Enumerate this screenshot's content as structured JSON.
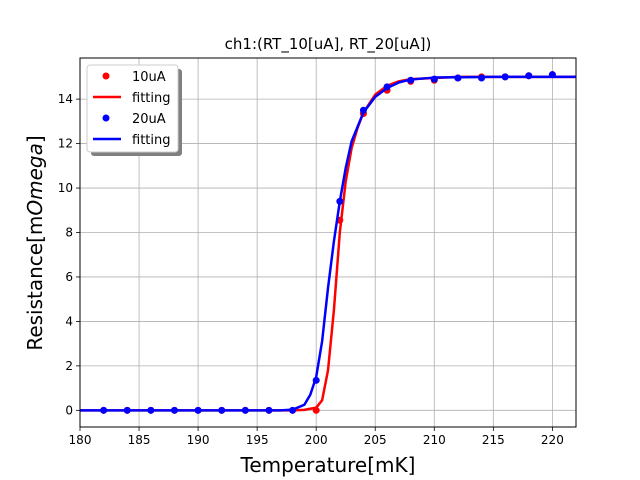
{
  "chart_data": {
    "type": "line",
    "title": "ch1:(RT_10[uA], RT_20[uA])",
    "xlabel": "Temperature[mK]",
    "ylabel_prefix": "Resistance[m",
    "ylabel_italic": "Omega",
    "ylabel_suffix": "]",
    "xlim": [
      180,
      222
    ],
    "ylim": [
      -0.75,
      15.85
    ],
    "xticks": [
      180,
      185,
      190,
      195,
      200,
      205,
      210,
      215,
      220
    ],
    "yticks": [
      0,
      2,
      4,
      6,
      8,
      10,
      12,
      14
    ],
    "grid": true,
    "legend_position": "top-left",
    "series": [
      {
        "name": "10uA",
        "kind": "points",
        "color": "#ff0000",
        "x": [
          182,
          184,
          186,
          188,
          190,
          192,
          194,
          196,
          198,
          200,
          202,
          204,
          206,
          208,
          210,
          212,
          214,
          216,
          218,
          220
        ],
        "y": [
          0,
          0,
          0,
          0,
          0,
          0,
          0,
          0,
          0,
          0,
          8.55,
          13.35,
          14.4,
          14.8,
          14.85,
          14.95,
          15.0,
          15.0,
          15.05,
          15.1
        ]
      },
      {
        "name": "fitting",
        "kind": "line",
        "color": "#ff0000",
        "x": [
          180,
          198,
          199,
          200,
          200.5,
          201,
          201.5,
          202,
          202.5,
          203,
          203.5,
          204,
          205,
          206,
          207,
          208,
          210,
          212,
          215,
          222
        ],
        "y": [
          0,
          0,
          0.02,
          0.12,
          0.45,
          1.8,
          4.5,
          8.0,
          10.3,
          11.8,
          12.7,
          13.4,
          14.2,
          14.6,
          14.8,
          14.9,
          14.95,
          15.0,
          15.0,
          15.0
        ]
      },
      {
        "name": "20uA",
        "kind": "points",
        "color": "#0000ff",
        "x": [
          182,
          184,
          186,
          188,
          190,
          192,
          194,
          196,
          198,
          200,
          202,
          204,
          206,
          208,
          210,
          212,
          214,
          216,
          218,
          220
        ],
        "y": [
          0,
          0,
          0,
          0,
          0,
          0,
          0,
          0,
          0,
          1.35,
          9.4,
          13.5,
          14.55,
          14.85,
          14.9,
          14.95,
          14.95,
          15.0,
          15.05,
          15.1
        ]
      },
      {
        "name": "fitting",
        "kind": "line",
        "color": "#0000ff",
        "x": [
          180,
          197,
          198,
          199,
          199.5,
          200,
          200.5,
          201,
          201.5,
          202,
          202.5,
          203,
          204,
          205,
          206,
          207,
          208,
          210,
          215,
          222
        ],
        "y": [
          0,
          0,
          0.03,
          0.25,
          0.7,
          1.5,
          3.1,
          5.5,
          7.6,
          9.4,
          10.9,
          12.1,
          13.4,
          14.1,
          14.5,
          14.75,
          14.88,
          14.97,
          15.0,
          15.0
        ]
      }
    ]
  }
}
